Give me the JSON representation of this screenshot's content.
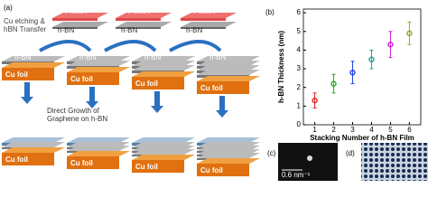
{
  "panel_a": {
    "label": "(a)",
    "transfer_note": [
      "Cu etching &",
      "hBN Transfer"
    ],
    "growth_note": [
      "Direct Growth of",
      "Graphene on h-BN"
    ],
    "pmma_labels": [
      "PMMA",
      "PMMA",
      "PMMA"
    ],
    "pmma_hbn_labels": [
      "h-BN",
      "h-BN",
      "h-BN"
    ],
    "stack_labels": [
      "h-BN",
      "h-BN",
      "h-BN",
      "h-BN"
    ],
    "cu_top": [
      "Cu foil",
      "Cu foil",
      "Cu foil",
      "Cu foil"
    ],
    "cu_bottom": [
      "Cu foil",
      "Cu foil",
      "Cu foil",
      "Cu foil"
    ]
  },
  "chart_data": {
    "type": "scatter",
    "label": "(b)",
    "x_label": "Stacking Number of h-BN Film",
    "y_label": "h-BN Thickness (nm)",
    "x": [
      1,
      2,
      3,
      4,
      5,
      6
    ],
    "values": [
      1.3,
      2.2,
      2.8,
      3.5,
      4.3,
      4.9
    ],
    "errors": [
      0.4,
      0.5,
      0.6,
      0.5,
      0.7,
      0.6
    ],
    "colors": [
      "#e02020",
      "#20b020",
      "#2040e0",
      "#20a0a0",
      "#d020d0",
      "#a0a020"
    ],
    "xlim": [
      0.4,
      6.6
    ],
    "xticks": [
      1,
      2,
      3,
      4,
      5,
      6
    ],
    "ylim": [
      0,
      6.2
    ],
    "yticks": [
      0,
      1,
      2,
      3,
      4,
      5,
      6
    ]
  },
  "panel_c": {
    "label": "(c)",
    "scale": "0.6 nm⁻¹"
  },
  "panel_d": {
    "label": "(d)"
  }
}
